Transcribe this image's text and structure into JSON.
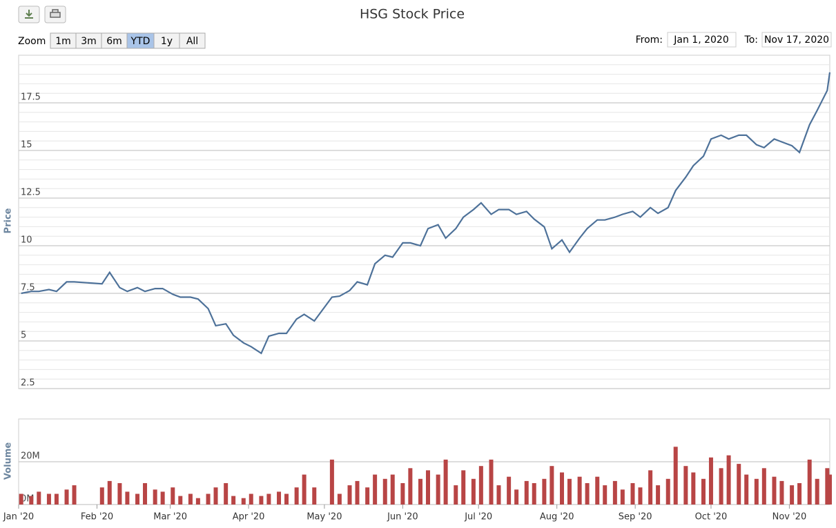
{
  "range_selector": {
    "label": "Zoom",
    "buttons": [
      "1m",
      "3m",
      "6m",
      "YTD",
      "1y",
      "All"
    ],
    "selected": "YTD",
    "from_label": "From:",
    "from": "Jan 1, 2020",
    "to_label": "To:",
    "to": "Nov 17, 2020"
  },
  "chart_data": [
    {
      "type": "line",
      "title": "HSG Stock Price",
      "y_label": "Price",
      "color": "#4d7199",
      "x": [
        "2020-01-02",
        "2020-01-06",
        "2020-01-09",
        "2020-01-13",
        "2020-01-16",
        "2020-01-20",
        "2020-01-23",
        "2020-02-03",
        "2020-02-06",
        "2020-02-10",
        "2020-02-13",
        "2020-02-17",
        "2020-02-20",
        "2020-02-24",
        "2020-02-27",
        "2020-03-02",
        "2020-03-05",
        "2020-03-09",
        "2020-03-12",
        "2020-03-16",
        "2020-03-19",
        "2020-03-23",
        "2020-03-26",
        "2020-03-30",
        "2020-04-02",
        "2020-04-06",
        "2020-04-09",
        "2020-04-13",
        "2020-04-16",
        "2020-04-20",
        "2020-04-23",
        "2020-04-27",
        "2020-05-04",
        "2020-05-07",
        "2020-05-11",
        "2020-05-14",
        "2020-05-18",
        "2020-05-21",
        "2020-05-25",
        "2020-05-28",
        "2020-06-01",
        "2020-06-04",
        "2020-06-08",
        "2020-06-11",
        "2020-06-15",
        "2020-06-18",
        "2020-06-22",
        "2020-06-25",
        "2020-06-29",
        "2020-07-02",
        "2020-07-06",
        "2020-07-09",
        "2020-07-13",
        "2020-07-16",
        "2020-07-20",
        "2020-07-23",
        "2020-07-27",
        "2020-07-30",
        "2020-08-03",
        "2020-08-06",
        "2020-08-10",
        "2020-08-13",
        "2020-08-17",
        "2020-08-20",
        "2020-08-24",
        "2020-08-27",
        "2020-08-31",
        "2020-09-03",
        "2020-09-07",
        "2020-09-10",
        "2020-09-14",
        "2020-09-17",
        "2020-09-21",
        "2020-09-24",
        "2020-09-28",
        "2020-10-01",
        "2020-10-05",
        "2020-10-08",
        "2020-10-12",
        "2020-10-15",
        "2020-10-19",
        "2020-10-22",
        "2020-10-26",
        "2020-10-29",
        "2020-11-02",
        "2020-11-05",
        "2020-11-09",
        "2020-11-12",
        "2020-11-16",
        "2020-11-17"
      ],
      "values": [
        7.5,
        7.6,
        7.6,
        7.7,
        7.6,
        8.1,
        8.1,
        8.0,
        8.6,
        7.8,
        7.6,
        7.8,
        7.6,
        7.75,
        7.75,
        7.45,
        7.3,
        7.3,
        7.2,
        6.7,
        5.8,
        5.9,
        5.3,
        4.9,
        4.7,
        4.35,
        5.25,
        5.4,
        5.4,
        6.15,
        6.4,
        6.05,
        7.3,
        7.35,
        7.65,
        8.1,
        7.95,
        9.05,
        9.5,
        9.4,
        10.15,
        10.15,
        10.0,
        10.9,
        11.1,
        10.4,
        10.9,
        11.5,
        11.9,
        12.25,
        11.65,
        11.9,
        11.9,
        11.65,
        11.8,
        11.4,
        10.99,
        9.84,
        10.3,
        9.66,
        10.4,
        10.9,
        11.35,
        11.35,
        11.5,
        11.65,
        11.8,
        11.5,
        12.0,
        11.7,
        12.0,
        12.9,
        13.6,
        14.2,
        14.7,
        15.6,
        15.8,
        15.6,
        15.8,
        15.8,
        15.3,
        15.15,
        15.6,
        15.45,
        15.25,
        14.9,
        16.35,
        17.1,
        18.15,
        19.1
      ],
      "xlim": [
        "2020-01-01",
        "2020-11-17"
      ],
      "ylim": [
        2.5,
        20
      ],
      "yticks": [
        2.5,
        5,
        7.5,
        10,
        12.5,
        15,
        17.5
      ],
      "grid": true,
      "minor_grid": true
    },
    {
      "type": "bar",
      "y_label": "Volume",
      "color": "#b84545",
      "x": [
        "2020-01-02",
        "2020-01-06",
        "2020-01-09",
        "2020-01-13",
        "2020-01-16",
        "2020-01-20",
        "2020-01-23",
        "2020-02-03",
        "2020-02-06",
        "2020-02-10",
        "2020-02-13",
        "2020-02-17",
        "2020-02-20",
        "2020-02-24",
        "2020-02-27",
        "2020-03-02",
        "2020-03-05",
        "2020-03-09",
        "2020-03-12",
        "2020-03-16",
        "2020-03-19",
        "2020-03-23",
        "2020-03-26",
        "2020-03-30",
        "2020-04-02",
        "2020-04-06",
        "2020-04-09",
        "2020-04-13",
        "2020-04-16",
        "2020-04-20",
        "2020-04-23",
        "2020-04-27",
        "2020-05-04",
        "2020-05-07",
        "2020-05-11",
        "2020-05-14",
        "2020-05-18",
        "2020-05-21",
        "2020-05-25",
        "2020-05-28",
        "2020-06-01",
        "2020-06-04",
        "2020-06-08",
        "2020-06-11",
        "2020-06-15",
        "2020-06-18",
        "2020-06-22",
        "2020-06-25",
        "2020-06-29",
        "2020-07-02",
        "2020-07-06",
        "2020-07-09",
        "2020-07-13",
        "2020-07-16",
        "2020-07-20",
        "2020-07-23",
        "2020-07-27",
        "2020-07-30",
        "2020-08-03",
        "2020-08-06",
        "2020-08-10",
        "2020-08-13",
        "2020-08-17",
        "2020-08-20",
        "2020-08-24",
        "2020-08-27",
        "2020-08-31",
        "2020-09-03",
        "2020-09-07",
        "2020-09-10",
        "2020-09-14",
        "2020-09-17",
        "2020-09-21",
        "2020-09-24",
        "2020-09-28",
        "2020-10-01",
        "2020-10-05",
        "2020-10-08",
        "2020-10-12",
        "2020-10-15",
        "2020-10-19",
        "2020-10-22",
        "2020-10-26",
        "2020-10-29",
        "2020-11-02",
        "2020-11-05",
        "2020-11-09",
        "2020-11-12",
        "2020-11-16",
        "2020-11-17"
      ],
      "values": [
        5000000,
        4000000,
        6000000,
        5000000,
        5000000,
        7000000,
        9000000,
        8000000,
        11000000,
        10000000,
        6000000,
        5000000,
        10000000,
        7000000,
        6000000,
        8000000,
        4000000,
        5000000,
        3000000,
        5000000,
        8000000,
        10000000,
        4000000,
        3000000,
        5000000,
        4000000,
        5000000,
        6000000,
        5000000,
        8000000,
        14000000,
        8000000,
        21000000,
        5000000,
        9000000,
        11000000,
        8000000,
        14000000,
        12000000,
        14000000,
        10000000,
        17000000,
        12000000,
        16000000,
        14000000,
        21000000,
        9000000,
        16000000,
        12000000,
        18000000,
        21000000,
        9000000,
        13000000,
        7000000,
        11000000,
        10000000,
        12000000,
        18000000,
        15000000,
        12000000,
        13000000,
        10000000,
        13000000,
        9000000,
        11000000,
        7000000,
        10000000,
        8000000,
        16000000,
        9000000,
        12000000,
        27000000,
        18000000,
        15000000,
        12000000,
        22000000,
        17000000,
        23000000,
        19000000,
        14000000,
        12000000,
        17000000,
        13000000,
        11000000,
        9000000,
        10000000,
        21000000,
        12000000,
        17000000,
        14000000
      ],
      "xlim": [
        "2020-01-01",
        "2020-11-17"
      ],
      "xticks": [
        {
          "value": "2020-01-01",
          "label": "Jan '20"
        },
        {
          "value": "2020-02-01",
          "label": "Feb '20"
        },
        {
          "value": "2020-03-01",
          "label": "Mar '20"
        },
        {
          "value": "2020-04-01",
          "label": "Apr '20"
        },
        {
          "value": "2020-05-01",
          "label": "May '20"
        },
        {
          "value": "2020-06-01",
          "label": "Jun '20"
        },
        {
          "value": "2020-07-01",
          "label": "Jul '20"
        },
        {
          "value": "2020-08-01",
          "label": "Aug '20"
        },
        {
          "value": "2020-09-01",
          "label": "Sep '20"
        },
        {
          "value": "2020-10-01",
          "label": "Oct '20"
        },
        {
          "value": "2020-11-01",
          "label": "Nov '20"
        }
      ],
      "ylim": [
        0,
        40000000
      ],
      "yticks": [
        {
          "value": 0,
          "label": "0M"
        },
        {
          "value": 20000000,
          "label": "20M"
        }
      ],
      "grid": true
    }
  ]
}
